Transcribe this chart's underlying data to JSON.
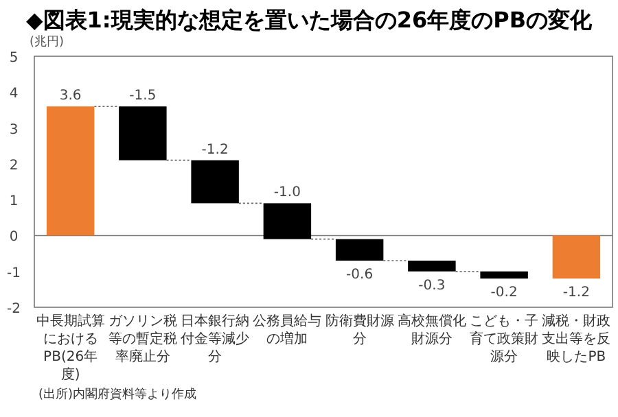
{
  "chart_data": {
    "type": "bar",
    "title": "◆図表1:現実的な想定を置いた場合の26年度のPBの変化",
    "ylabel": "(兆円)",
    "categories": [
      "中長期試算におけるPB(26年度)",
      "ガソリン税等の暫定税率廃止分",
      "日本銀行納付金等減少分",
      "公務員給与の増加",
      "防衛費財源分",
      "高校無償化財源分",
      "こども・子育て政策財源分",
      "減税・財政支出等を反映したPB"
    ],
    "values": [
      3.6,
      -1.5,
      -1.2,
      -1.0,
      -0.6,
      -0.3,
      -0.2,
      -1.2
    ],
    "base": [
      0,
      3.6,
      2.1,
      0.9,
      -0.1,
      -0.7,
      -1.0,
      0
    ],
    "colors": [
      "#ed7d31",
      "#000000",
      "#000000",
      "#000000",
      "#000000",
      "#000000",
      "#000000",
      "#ed7d31"
    ],
    "value_labels": [
      "3.6",
      "-1.5",
      "-1.2",
      "-1.0",
      "-0.6",
      "-0.3",
      "-0.2",
      "-1.2"
    ],
    "ylim": [
      -2,
      5
    ],
    "yticks": [
      -2,
      -1,
      0,
      1,
      2,
      3,
      4,
      5
    ],
    "annotations": [
      "(出所)内閣府資料等より作成"
    ]
  }
}
